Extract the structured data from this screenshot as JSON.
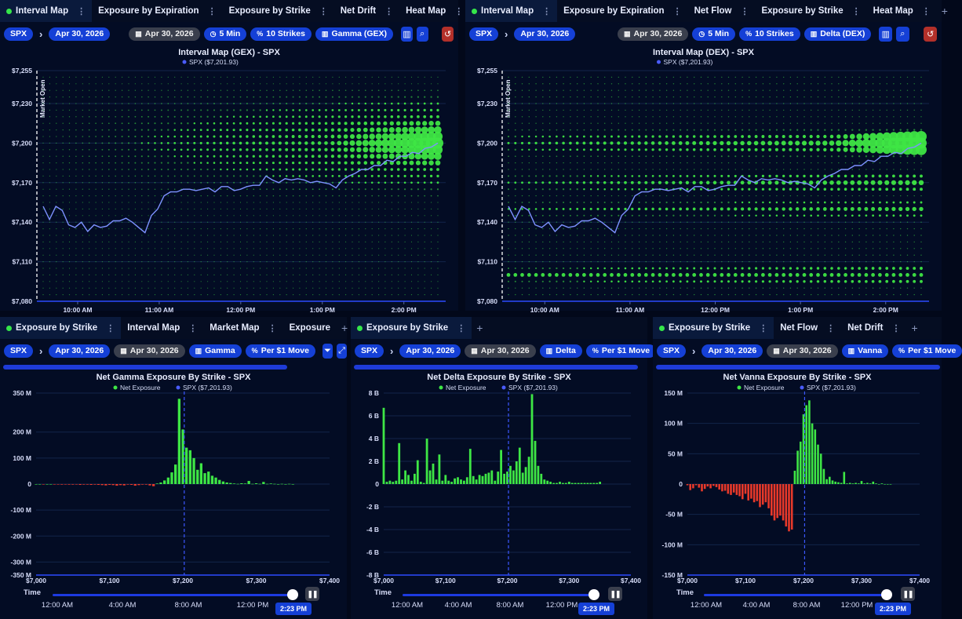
{
  "colors": {
    "positive": "#3ee645",
    "negative": "#e8392a",
    "price_line": "#7d92ff",
    "accent": "#1540d6"
  },
  "panels": [
    {
      "tabs": [
        {
          "label": "Interval Map",
          "active": true,
          "dot": true
        },
        {
          "label": "Exposure by Expiration"
        },
        {
          "label": "Exposure by Strike"
        },
        {
          "label": "Net Drift"
        },
        {
          "label": "Heat Map"
        }
      ],
      "controls": {
        "symbol": "SPX",
        "expiration": "Apr 30, 2026",
        "date": "Apr 30, 2026",
        "interval": "5 Min",
        "strikes": "10 Strikes",
        "greek": "Gamma (GEX)"
      },
      "icons": [
        "calendar-icon",
        "clock-icon",
        "percent-icon",
        "chart-icon",
        "bar-chart-icon",
        "search-icon",
        "history-icon"
      ]
    },
    {
      "tabs": [
        {
          "label": "Interval Map",
          "active": true,
          "dot": true
        },
        {
          "label": "Exposure by Expiration"
        },
        {
          "label": "Net Flow"
        },
        {
          "label": "Exposure by Strike"
        },
        {
          "label": "Heat Map"
        }
      ],
      "controls": {
        "symbol": "SPX",
        "expiration": "Apr 30, 2026",
        "date": "Apr 30, 2026",
        "interval": "5 Min",
        "strikes": "10 Strikes",
        "greek": "Delta (DEX)"
      }
    },
    {
      "tabs": [
        {
          "label": "Exposure by Strike",
          "active": true,
          "dot": true
        },
        {
          "label": "Interval Map"
        },
        {
          "label": "Market Map"
        },
        {
          "label": "Exposure"
        }
      ],
      "tab_extra": "1",
      "controls": {
        "symbol": "SPX",
        "expiration": "Apr 30, 2026",
        "date": "Apr 30, 2026",
        "greek": "Gamma",
        "unit": "Per $1 Move"
      },
      "slider": {
        "label": "Time",
        "ticks": [
          "12:00 AM",
          "4:00 AM",
          "8:00 AM",
          "12:00 PM"
        ],
        "current": "2:23 PM"
      }
    },
    {
      "tabs": [
        {
          "label": "Exposure by Strike",
          "active": true,
          "dot": true
        }
      ],
      "controls": {
        "symbol": "SPX",
        "expiration": "Apr 30, 2026",
        "date": "Apr 30, 2026",
        "greek": "Delta",
        "unit": "Per $1 Move"
      },
      "slider": {
        "label": "Time",
        "ticks": [
          "12:00 AM",
          "4:00 AM",
          "8:00 AM",
          "12:00 PM"
        ],
        "current": "2:23 PM"
      }
    },
    {
      "tabs": [
        {
          "label": "Exposure by Strike",
          "active": true,
          "dot": true
        },
        {
          "label": "Net Flow"
        },
        {
          "label": "Net Drift"
        }
      ],
      "controls": {
        "symbol": "SPX",
        "expiration": "Apr 30, 2026",
        "date": "Apr 30, 2026",
        "greek": "Vanna",
        "unit": "Per $1 Move"
      },
      "slider": {
        "label": "Time",
        "ticks": [
          "12:00 AM",
          "4:00 AM",
          "8:00 AM",
          "12:00 PM"
        ],
        "current": "2:23 PM"
      }
    }
  ],
  "chart_data": [
    {
      "type": "scatter",
      "title": "Interval Map (GEX) - SPX",
      "legend": [
        "SPX ($7,201.93)"
      ],
      "annotation": "Market Open",
      "yticks": [
        "$7,255",
        "$7,230",
        "$7,200",
        "$7,170",
        "$7,140",
        "$7,110",
        "$7,080"
      ],
      "ylim": [
        7080,
        7255
      ],
      "xticks": [
        "10:00 AM",
        "11:00 AM",
        "12:00 PM",
        "1:00 PM",
        "2:00 PM"
      ],
      "x_start": "9:30 AM",
      "x_end": "2:25 PM",
      "price_series": [
        7152,
        7142,
        7152,
        7149,
        7138,
        7136,
        7140,
        7133,
        7138,
        7136,
        7137,
        7141,
        7141,
        7143,
        7140,
        7136,
        7132,
        7145,
        7150,
        7160,
        7163,
        7163,
        7165,
        7165,
        7164,
        7165,
        7166,
        7163,
        7167,
        7167,
        7164,
        7165,
        7167,
        7168,
        7168,
        7175,
        7172,
        7170,
        7173,
        7172,
        7173,
        7172,
        7170,
        7171,
        7170,
        7169,
        7166,
        7172,
        7175,
        7177,
        7180,
        7180,
        7183,
        7183,
        7187,
        7186,
        7190,
        7190,
        7193,
        7192,
        7196,
        7197,
        7200
      ],
      "bubbles": "green dots at each strike per interval, growing larger near $7,200 at recent times"
    },
    {
      "type": "scatter",
      "title": "Interval Map (DEX) - SPX",
      "legend": [
        "SPX ($7,201.93)"
      ],
      "annotation": "Market Open",
      "yticks": [
        "$7,255",
        "$7,230",
        "$7,200",
        "$7,170",
        "$7,140",
        "$7,110",
        "$7,080"
      ],
      "ylim": [
        7080,
        7255
      ],
      "xticks": [
        "10:00 AM",
        "11:00 AM",
        "12:00 PM",
        "1:00 PM",
        "2:00 PM"
      ],
      "bubbles": "green dots at each strike per interval, larger bands near $7,100, $7,150, $7,170 and $7,200"
    },
    {
      "type": "bar",
      "title": "Net Gamma Exposure By Strike - SPX",
      "legend": [
        "Net Exposure",
        "SPX ($7,201.93)"
      ],
      "xlim": [
        7000,
        7400
      ],
      "xticks": [
        "$7,000",
        "$7,100",
        "$7,200",
        "$7,300",
        "$7,400"
      ],
      "ylim": [
        -350,
        350
      ],
      "yticks": [
        "350 M",
        "200 M",
        "100 M",
        "0",
        "-100 M",
        "-200 M",
        "-300 M",
        "-350 M"
      ],
      "spot": 7201.93,
      "strikes_start": 7000,
      "strike_step": 5,
      "values_M": [
        0,
        0,
        -1,
        0,
        0,
        -1,
        -1,
        -2,
        -1,
        -2,
        -2,
        -1,
        -3,
        -2,
        -2,
        -3,
        -2,
        -3,
        -4,
        -5,
        -3,
        -4,
        -6,
        -4,
        -5,
        -2,
        -3,
        -6,
        -4,
        -2,
        -2,
        -5,
        -8,
        2,
        6,
        14,
        25,
        45,
        75,
        328,
        210,
        140,
        130,
        100,
        55,
        80,
        42,
        48,
        32,
        25,
        16,
        10,
        6,
        4,
        2,
        1,
        3,
        2,
        12,
        1,
        3,
        1,
        8,
        1,
        2,
        1,
        0,
        1,
        0,
        1,
        0
      ]
    },
    {
      "type": "bar",
      "title": "Net Delta Exposure By Strike - SPX",
      "legend": [
        "Net Exposure",
        "SPX ($7,201.93)"
      ],
      "xlim": [
        7000,
        7400
      ],
      "xticks": [
        "$7,000",
        "$7,100",
        "$7,200",
        "$7,300",
        "$7,400"
      ],
      "ylim": [
        -8,
        8
      ],
      "yticks": [
        "8 B",
        "6 B",
        "4 B",
        "2 B",
        "0",
        "-2 B",
        "-4 B",
        "-6 B",
        "-8 B"
      ],
      "spot": 7201.93,
      "strikes_start": 7000,
      "strike_step": 5,
      "values_B": [
        6.7,
        0.2,
        0.3,
        0.2,
        0.3,
        3.6,
        0.4,
        1.2,
        0.8,
        0.3,
        0.9,
        2.1,
        0.2,
        0.1,
        4.0,
        1.2,
        1.8,
        0.4,
        2.6,
        0.3,
        0.8,
        0.3,
        0.2,
        0.5,
        0.6,
        0.4,
        0.3,
        0.6,
        3.1,
        0.7,
        0.4,
        0.8,
        0.7,
        0.9,
        1.0,
        1.2,
        0.3,
        1.1,
        3.0,
        0.9,
        1.1,
        1.6,
        1.2,
        2.0,
        3.2,
        1.0,
        1.5,
        2.4,
        7.9,
        3.8,
        1.6,
        0.9,
        0.4,
        0.3,
        0.2,
        0.1,
        0.1,
        0.2,
        0.1,
        0.1,
        0.2,
        0.1,
        0.1,
        0.1,
        0.1,
        0.1,
        0.1,
        0.1,
        0.1,
        0.1,
        0.2
      ]
    },
    {
      "type": "bar",
      "title": "Net Vanna Exposure By Strike - SPX",
      "legend": [
        "Net Exposure",
        "SPX ($7,201.93)"
      ],
      "xlim": [
        7000,
        7400
      ],
      "xticks": [
        "$7,000",
        "$7,100",
        "$7,200",
        "$7,300",
        "$7,400"
      ],
      "ylim": [
        -150,
        150
      ],
      "yticks": [
        "150 M",
        "100 M",
        "50 M",
        "0",
        "-50 M",
        "-100 M",
        "-150 M"
      ],
      "spot": 7201.93,
      "strikes_start": 7000,
      "strike_step": 5,
      "values_M": [
        -2,
        -10,
        -7,
        -2,
        -6,
        -12,
        -8,
        -4,
        -7,
        -3,
        -5,
        -9,
        -12,
        -11,
        -16,
        -18,
        -14,
        -18,
        -20,
        -25,
        -16,
        -27,
        -24,
        -30,
        -28,
        -38,
        -34,
        -30,
        -40,
        -52,
        -60,
        -56,
        -52,
        -60,
        -70,
        -78,
        -75,
        22,
        55,
        70,
        115,
        130,
        138,
        100,
        90,
        65,
        50,
        25,
        8,
        12,
        6,
        4,
        3,
        2,
        20,
        1,
        2,
        1,
        2,
        1,
        5,
        1,
        2,
        1,
        4,
        1,
        0,
        1,
        0,
        0,
        0
      ]
    }
  ]
}
